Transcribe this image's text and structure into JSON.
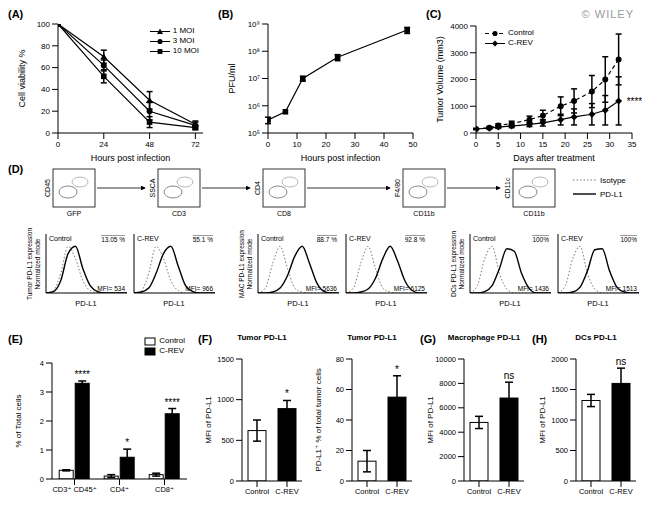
{
  "chart_data": [
    {
      "panel": "(A)",
      "type": "line",
      "x": [
        0,
        24,
        48,
        72
      ],
      "xlim": [
        0,
        76
      ],
      "xticks": [
        0,
        24,
        48,
        72
      ],
      "ylim": [
        0,
        100
      ],
      "yticks": [
        0,
        20,
        40,
        60,
        80,
        100
      ],
      "x_label": "Hours post infection",
      "y_label": "Cell viability %",
      "legend": "top-right",
      "series": [
        {
          "name": "1 MOI",
          "marker": "triangle",
          "line_style": "solid",
          "color": "#000000",
          "values": [
            100,
            70,
            30,
            8
          ],
          "errors": [
            0,
            6,
            8,
            3
          ]
        },
        {
          "name": "3 MOI",
          "marker": "circle",
          "line_style": "solid",
          "color": "#000000",
          "values": [
            100,
            62,
            20,
            7
          ],
          "errors": [
            0,
            5,
            8,
            3
          ]
        },
        {
          "name": "10 MOI",
          "marker": "square",
          "line_style": "solid",
          "color": "#000000",
          "values": [
            100,
            52,
            10,
            5
          ],
          "errors": [
            0,
            6,
            5,
            2
          ]
        }
      ]
    },
    {
      "panel": "(B)",
      "type": "line",
      "log": "y",
      "x": [
        0,
        6,
        12,
        24,
        48
      ],
      "xlim": [
        0,
        50
      ],
      "xticks": [
        0,
        10,
        20,
        30,
        40,
        50
      ],
      "ylim": [
        100000,
        1000000000
      ],
      "yticks": [
        {
          "value": 100000,
          "label": "10⁵"
        },
        {
          "value": 1000000,
          "label": "10⁶"
        },
        {
          "value": 10000000,
          "label": "10⁷"
        },
        {
          "value": 100000000,
          "label": "10⁸"
        },
        {
          "value": 1000000000,
          "label": "10⁹"
        }
      ],
      "x_label": "Hours post infection",
      "y_label": "PFU/ml",
      "series": [
        {
          "marker": "square",
          "line_style": "solid",
          "color": "#000000",
          "values": [
            300000,
            600000,
            10000000,
            60000000,
            600000000
          ],
          "errors": [
            80000,
            0,
            2000000,
            15000000,
            150000000
          ]
        }
      ]
    },
    {
      "panel": "(C)",
      "type": "line",
      "watermark": "© WILEY",
      "x": [
        0,
        3,
        5,
        8,
        12,
        15,
        19,
        22,
        26,
        29,
        32
      ],
      "xlim": [
        0,
        35
      ],
      "xticks": [
        0,
        5,
        10,
        15,
        20,
        25,
        30,
        35
      ],
      "ylim": [
        0,
        4000
      ],
      "yticks": [
        0,
        1000,
        2000,
        3000,
        4000
      ],
      "x_label": "Days after treatment",
      "y_label": "Tumor Volume (mm3)",
      "legend": "top-left",
      "annotation": "****",
      "series": [
        {
          "name": "Control",
          "marker": "circle",
          "line_style": "dashed",
          "color": "#000000",
          "values": [
            150,
            200,
            280,
            350,
            500,
            650,
            1000,
            1200,
            1550,
            2000,
            2750
          ],
          "errors": [
            20,
            40,
            60,
            90,
            130,
            200,
            350,
            450,
            600,
            850,
            950
          ]
        },
        {
          "name": "C-REV",
          "marker": "diamond",
          "line_style": "solid",
          "color": "#000000",
          "values": [
            150,
            180,
            220,
            260,
            320,
            380,
            500,
            600,
            700,
            850,
            1200
          ],
          "errors": [
            20,
            30,
            50,
            60,
            80,
            120,
            200,
            300,
            400,
            550,
            900
          ]
        }
      ]
    },
    {
      "panel": "(D)",
      "type": "flow_cytometry",
      "tick_labels": false,
      "x": [
        0,
        1,
        2,
        3,
        4,
        5,
        6,
        7,
        8,
        9,
        10,
        11
      ],
      "xlim": [
        0,
        11
      ],
      "ylim": [
        0,
        120
      ],
      "gates": [
        {
          "y_label": "CD45",
          "x_label": "GFP"
        },
        {
          "y_label": "SSCA",
          "x_label": "CD3"
        },
        {
          "y_label": "CD4",
          "x_label": "CD8"
        },
        {
          "y_label": "F4/80",
          "x_label": "CD11b"
        },
        {
          "y_label": "CD11c",
          "x_label": "CD11b"
        }
      ],
      "series": [
        {
          "name": "Isotype",
          "line_style": "dotted",
          "color": "#777777"
        },
        {
          "name": "PD-L1",
          "line_style": "solid",
          "color": "#000000"
        }
      ],
      "groups": [
        {
          "y_label": [
            "Tumor PD-L1 expression",
            "Normalized mode"
          ],
          "x_label": "PD-L1",
          "histograms": [
            {
              "name": "Control",
              "percent": "13.05 %",
              "mfi": "MFI= 534",
              "isotype": [
                0,
                5,
                40,
                95,
                70,
                25,
                5,
                0,
                0,
                0,
                0,
                0
              ],
              "pd_l1": [
                0,
                3,
                25,
                80,
                95,
                50,
                15,
                3,
                0,
                0,
                0,
                0
              ]
            },
            {
              "name": "C-REV",
              "percent": "55.1 %",
              "mfi": "MFI= 966",
              "isotype": [
                0,
                5,
                40,
                95,
                70,
                25,
                5,
                0,
                0,
                0,
                0,
                0
              ],
              "pd_l1": [
                0,
                2,
                10,
                40,
                80,
                95,
                55,
                15,
                3,
                0,
                0,
                0
              ]
            }
          ]
        },
        {
          "y_label": [
            "MAC PD-L1 expression",
            "Normalized mode"
          ],
          "x_label": "PD-L1",
          "histograms": [
            {
              "name": "Control",
              "percent": "88.7 %",
              "mfi": "MFI= 5636",
              "isotype": [
                0,
                10,
                60,
                95,
                50,
                10,
                2,
                0,
                0,
                0,
                0,
                0
              ],
              "pd_l1": [
                0,
                0,
                2,
                10,
                35,
                75,
                95,
                60,
                20,
                3,
                0,
                0
              ]
            },
            {
              "name": "C-REV",
              "percent": "92.8 %",
              "mfi": "MFI= 6125",
              "isotype": [
                0,
                10,
                60,
                95,
                50,
                10,
                2,
                0,
                0,
                0,
                0,
                0
              ],
              "pd_l1": [
                0,
                0,
                2,
                8,
                30,
                70,
                95,
                65,
                25,
                5,
                0,
                0
              ]
            }
          ]
        },
        {
          "y_label": [
            "DCs PD-L1 expression",
            "Normalized mode"
          ],
          "x_label": "PD-L1",
          "histograms": [
            {
              "name": "Control",
              "percent": "100%",
              "mfi": "MFI= 1436",
              "isotype": [
                0,
                15,
                70,
                95,
                40,
                8,
                0,
                0,
                0,
                0,
                0,
                0
              ],
              "pd_l1": [
                0,
                0,
                3,
                15,
                50,
                90,
                85,
                40,
                10,
                0,
                0,
                0
              ]
            },
            {
              "name": "C-REV",
              "percent": "100%",
              "mfi": "MFI= 1513",
              "isotype": [
                0,
                15,
                70,
                95,
                40,
                8,
                0,
                0,
                0,
                0,
                0,
                0
              ],
              "pd_l1": [
                0,
                0,
                2,
                12,
                45,
                88,
                90,
                45,
                12,
                2,
                0,
                0
              ]
            }
          ]
        }
      ]
    },
    {
      "panel": "(E)",
      "type": "bar",
      "categories": [
        "CD3⁺ CD45⁺",
        "CD4⁺",
        "CD8⁺"
      ],
      "ylim": [
        0,
        4
      ],
      "yticks": [
        0,
        1,
        2,
        3,
        4
      ],
      "y_label": "% of Total cells",
      "legend": "top-right",
      "series": [
        {
          "name": "Control",
          "color": "#ffffff",
          "values": [
            0.3,
            0.1,
            0.15
          ],
          "errors": [
            0.02,
            0.05,
            0.05
          ]
        },
        {
          "name": "C-REV",
          "color": "#000000",
          "values": [
            3.3,
            0.75,
            2.25
          ],
          "errors": [
            0.08,
            0.28,
            0.18
          ],
          "significance": [
            "****",
            "*",
            "****"
          ]
        }
      ]
    },
    {
      "panel": "(F)",
      "type": "bar",
      "title": "Tumor PD-L1",
      "categories": [
        "Control",
        "C-REV"
      ],
      "ylim": [
        0,
        1500
      ],
      "yticks": [
        0,
        500,
        1000,
        1500
      ],
      "y_label": "MFI of PD-L1",
      "colors": [
        "#ffffff",
        "#000000"
      ],
      "values": [
        620,
        890
      ],
      "errors": [
        130,
        100
      ],
      "significance": [
        null,
        "*"
      ]
    },
    {
      "type": "bar",
      "title": "Tumor PD-L1",
      "categories": [
        "Control",
        "C-REV"
      ],
      "ylim": [
        0,
        80
      ],
      "yticks": [
        0,
        20,
        40,
        60,
        80
      ],
      "y_label": "PD-L1⁺ % of total tumor cells",
      "colors": [
        "#ffffff",
        "#000000"
      ],
      "values": [
        13,
        55
      ],
      "errors": [
        7,
        14
      ],
      "significance": [
        null,
        "*"
      ]
    },
    {
      "panel": "(G)",
      "type": "bar",
      "title": "Macrophage PD-L1",
      "categories": [
        "Control",
        "C-REV"
      ],
      "ylim": [
        0,
        10000
      ],
      "yticks": [
        0,
        2000,
        4000,
        6000,
        8000,
        10000
      ],
      "y_label": "MFI of PD-L1",
      "colors": [
        "#ffffff",
        "#000000"
      ],
      "values": [
        4800,
        6800
      ],
      "errors": [
        500,
        1300
      ],
      "significance": [
        null,
        "ns"
      ]
    },
    {
      "panel": "(H)",
      "type": "bar",
      "title": "DCs PD-L1",
      "categories": [
        "Control",
        "C-REV"
      ],
      "ylim": [
        0,
        2000
      ],
      "yticks": [
        0,
        500,
        1000,
        1500,
        2000
      ],
      "y_label": "MFI of PD-L1",
      "colors": [
        "#ffffff",
        "#000000"
      ],
      "values": [
        1320,
        1600
      ],
      "errors": [
        100,
        250
      ],
      "significance": [
        null,
        "ns"
      ]
    }
  ]
}
